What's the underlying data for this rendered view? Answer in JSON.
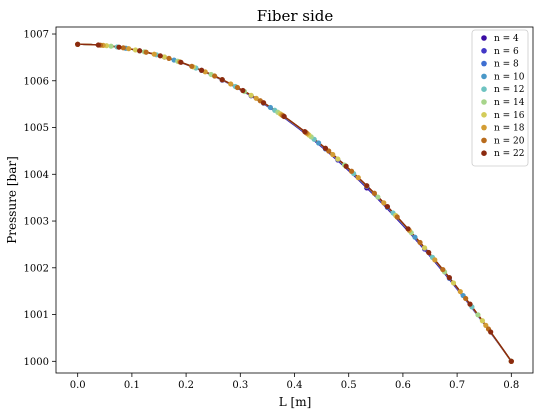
{
  "chart_data": {
    "type": "line",
    "title": "Fiber side",
    "xlabel": "L [m]",
    "ylabel": "Pressure [bar]",
    "xlim": [
      -0.04,
      0.84
    ],
    "ylim": [
      999.75,
      1007.15
    ],
    "x_ticks": [
      0.0,
      0.1,
      0.2,
      0.3,
      0.4,
      0.5,
      0.6,
      0.7,
      0.8
    ],
    "x_tick_labels": [
      "0.0",
      "0.1",
      "0.2",
      "0.3",
      "0.4",
      "0.5",
      "0.6",
      "0.7",
      "0.8"
    ],
    "y_ticks": [
      1000,
      1001,
      1002,
      1003,
      1004,
      1005,
      1006,
      1007
    ],
    "y_tick_labels": [
      "1000",
      "1001",
      "1002",
      "1003",
      "1004",
      "1005",
      "1006",
      "1007"
    ],
    "grid": false,
    "legend_position": "top-right",
    "curve": {
      "p0": 1006.78,
      "p_end": 1000.0,
      "x_end": 0.8
    },
    "series": [
      {
        "name": "n = 4",
        "color": "#3a0ca3",
        "n": 4
      },
      {
        "name": "n = 6",
        "color": "#4338c6",
        "n": 6
      },
      {
        "name": "n = 8",
        "color": "#3f6fd1",
        "n": 8
      },
      {
        "name": "n = 10",
        "color": "#4a98c8",
        "n": 10
      },
      {
        "name": "n = 12",
        "color": "#6ec3c1",
        "n": 12
      },
      {
        "name": "n = 14",
        "color": "#a7d58b",
        "n": 14
      },
      {
        "name": "n = 16",
        "color": "#d3cc5a",
        "n": 16
      },
      {
        "name": "n = 18",
        "color": "#d39d34",
        "n": 18
      },
      {
        "name": "n = 20",
        "color": "#b86b1c",
        "n": 20
      },
      {
        "name": "n = 22",
        "color": "#8b2a0f",
        "n": 22
      }
    ]
  }
}
